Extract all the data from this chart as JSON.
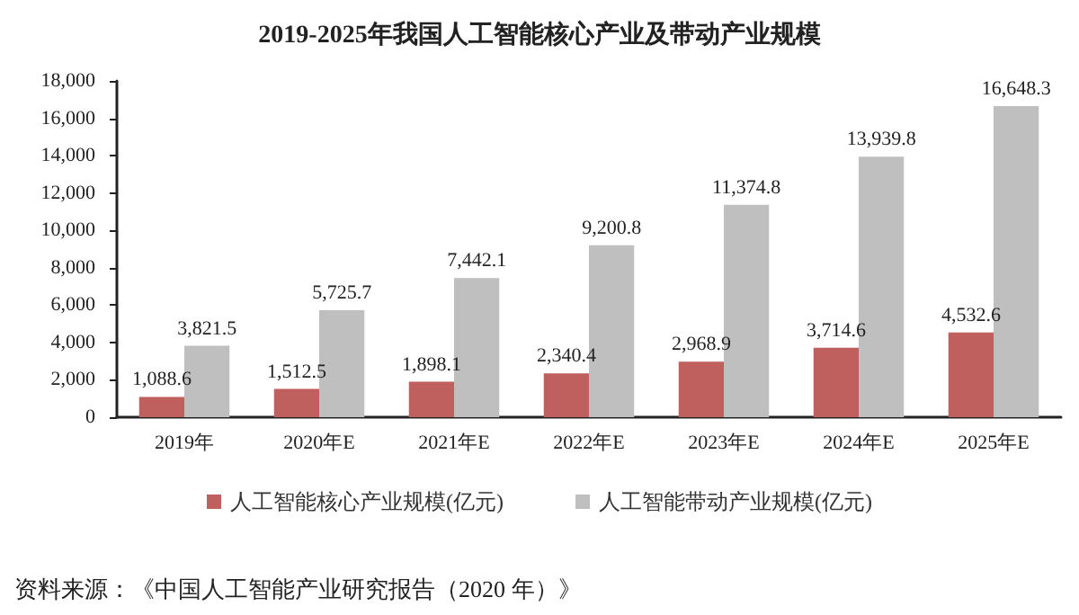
{
  "chart_data": {
    "type": "bar",
    "title": "2019-2025年我国人工智能核心产业及带动产业规模",
    "categories": [
      "2019年",
      "2020年E",
      "2021年E",
      "2022年E",
      "2023年E",
      "2024年E",
      "2025年E"
    ],
    "series": [
      {
        "name": "人工智能核心产业规模(亿元)",
        "color": "#c0605e",
        "values": [
          1088.6,
          1512.5,
          1898.1,
          2340.4,
          2968.9,
          3714.6,
          4532.6
        ],
        "value_labels": [
          "1,088.6",
          "1,512.5",
          "1,898.1",
          "2,340.4",
          "2,968.9",
          "3,714.6",
          "4,532.6"
        ]
      },
      {
        "name": "人工智能带动产业规模(亿元)",
        "color": "#bfbfbf",
        "values": [
          3821.5,
          5725.7,
          7442.1,
          9200.8,
          11374.8,
          13939.8,
          16648.3
        ],
        "value_labels": [
          "3,821.5",
          "5,725.7",
          "7,442.1",
          "9,200.8",
          "11,374.8",
          "13,939.8",
          "16,648.3"
        ]
      }
    ],
    "ylim": [
      0,
      18000
    ],
    "yticks": [
      {
        "value": 0,
        "label": "0"
      },
      {
        "value": 2000,
        "label": "2,000"
      },
      {
        "value": 4000,
        "label": "4,000"
      },
      {
        "value": 6000,
        "label": "6,000"
      },
      {
        "value": 8000,
        "label": "8,000"
      },
      {
        "value": 10000,
        "label": "10,000"
      },
      {
        "value": 12000,
        "label": "12,000"
      },
      {
        "value": 14000,
        "label": "14,000"
      },
      {
        "value": 16000,
        "label": "16,000"
      },
      {
        "value": 18000,
        "label": "18,000"
      }
    ],
    "grid": false,
    "legend": "bottom",
    "annotations": [
      "资料来源：《中国人工智能产业研究报告（2020 年）》"
    ]
  }
}
